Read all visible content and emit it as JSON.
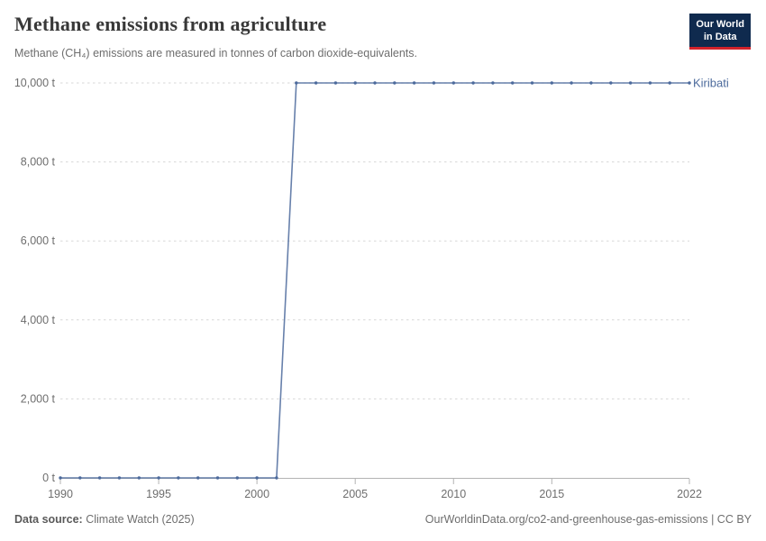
{
  "header": {
    "title": "Methane emissions from agriculture",
    "subtitle": "Methane (CH₄) emissions are measured in tonnes of carbon dioxide-equivalents."
  },
  "logo": {
    "line1": "Our World",
    "line2": "in Data",
    "bg_color": "#0f2a4e",
    "accent_color": "#d2222b"
  },
  "footer": {
    "source_label": "Data source:",
    "source_value": "Climate Watch (2025)",
    "credit": "OurWorldinData.org/co2-and-greenhouse-gas-emissions | CC BY"
  },
  "chart_data": {
    "type": "line",
    "title": "Methane emissions from agriculture",
    "xlabel": "",
    "ylabel": "",
    "unit": "t",
    "xlim": [
      1990,
      2022
    ],
    "ylim": [
      0,
      10000
    ],
    "xticks": [
      1990,
      1995,
      2000,
      2005,
      2010,
      2015,
      2022
    ],
    "yticks": [
      0,
      2000,
      4000,
      6000,
      8000,
      10000
    ],
    "ytick_suffix": " t",
    "grid": "horizontal-dashed",
    "legend_position": "end-of-line",
    "x": [
      1990,
      1991,
      1992,
      1993,
      1994,
      1995,
      1996,
      1997,
      1998,
      1999,
      2000,
      2001,
      2002,
      2003,
      2004,
      2005,
      2006,
      2007,
      2008,
      2009,
      2010,
      2011,
      2012,
      2013,
      2014,
      2015,
      2016,
      2017,
      2018,
      2019,
      2020,
      2021,
      2022
    ],
    "series": [
      {
        "name": "Kiribati",
        "color": "#4c6a9c",
        "values": [
          0,
          0,
          0,
          0,
          0,
          0,
          0,
          0,
          0,
          0,
          0,
          0,
          10000,
          10000,
          10000,
          10000,
          10000,
          10000,
          10000,
          10000,
          10000,
          10000,
          10000,
          10000,
          10000,
          10000,
          10000,
          10000,
          10000,
          10000,
          10000,
          10000,
          10000
        ]
      }
    ]
  }
}
